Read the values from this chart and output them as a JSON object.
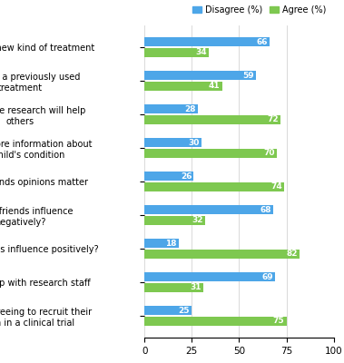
{
  "categories": [
    "Studying a new kind of treatment",
    "Studying a previously used\ntreatment",
    "Believe the research will help\nothers",
    "Receive more information about\nthe child's condition",
    "Family/friends opinions matter",
    "Family/friends influence\nnegatively?",
    "Family/friends influence positively?",
    "Relationship with research staff",
    "Overall, agreeing to recruit their\nchildren in a clinical trial"
  ],
  "disagree": [
    66,
    59,
    28,
    30,
    26,
    68,
    18,
    69,
    25
  ],
  "agree": [
    34,
    41,
    72,
    70,
    74,
    32,
    82,
    31,
    75
  ],
  "disagree_color": "#4da6e8",
  "agree_color": "#7ec850",
  "xlim": [
    0,
    100
  ],
  "xticks": [
    0,
    25,
    50,
    75,
    100
  ],
  "legend_disagree": "Disagree (%)",
  "legend_agree": "Agree (%)",
  "bar_height": 0.28,
  "label_fontsize": 7.0,
  "tick_fontsize": 7.5,
  "value_fontsize": 6.5
}
